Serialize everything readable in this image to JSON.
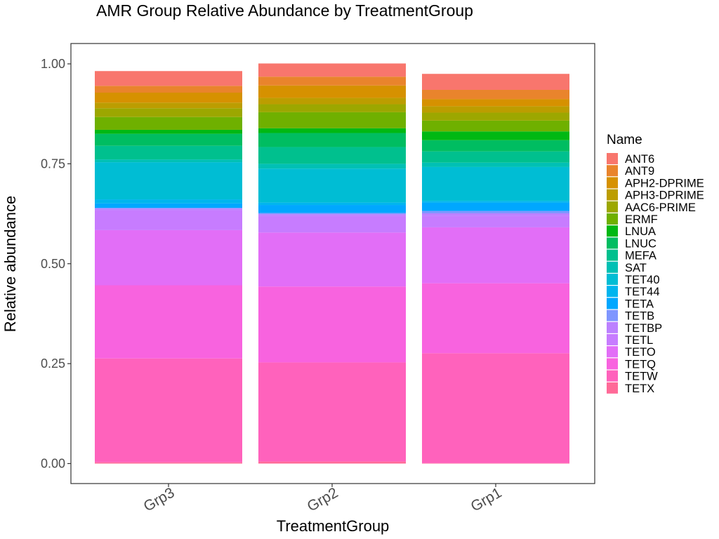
{
  "chart_data": {
    "type": "bar",
    "stacked": true,
    "title": "AMR Group Relative Abundance by TreatmentGroup",
    "xlabel": "TreatmentGroup",
    "ylabel": "Relative abundance",
    "ylim": [
      0,
      1
    ],
    "yticks": [
      "0.00",
      "0.25",
      "0.50",
      "0.75",
      "1.00"
    ],
    "categories": [
      "Grp3",
      "Grp2",
      "Grp1"
    ],
    "legend": {
      "title": "Name",
      "position": "right"
    },
    "series": [
      {
        "name": "ANT6",
        "color": "#F8766D",
        "values": [
          0.037,
          0.033,
          0.04
        ]
      },
      {
        "name": "ANT9",
        "color": "#E9842C",
        "values": [
          0.017,
          0.022,
          0.023
        ]
      },
      {
        "name": "APH2-DPRIME",
        "color": "#D69100",
        "values": [
          0.025,
          0.031,
          0.018
        ]
      },
      {
        "name": "APH3-DPRIME",
        "color": "#BC9D00",
        "values": [
          0.014,
          0.016,
          0.016
        ]
      },
      {
        "name": "AAC6-PRIME",
        "color": "#9CA700",
        "values": [
          0.022,
          0.02,
          0.02
        ]
      },
      {
        "name": "ERMF",
        "color": "#6FB000",
        "values": [
          0.032,
          0.04,
          0.027
        ]
      },
      {
        "name": "LNUA",
        "color": "#00B813",
        "values": [
          0.01,
          0.012,
          0.022
        ]
      },
      {
        "name": "LNUC",
        "color": "#00BD61",
        "values": [
          0.03,
          0.035,
          0.028
        ]
      },
      {
        "name": "MEFA",
        "color": "#00C08E",
        "values": [
          0.034,
          0.042,
          0.028
        ]
      },
      {
        "name": "SAT",
        "color": "#00C0B4",
        "values": [
          0.007,
          0.012,
          0.011
        ]
      },
      {
        "name": "TET40",
        "color": "#00BDD4",
        "values": [
          0.093,
          0.085,
          0.085
        ]
      },
      {
        "name": "TET44",
        "color": "#00B5EE",
        "values": [
          0.01,
          0.006,
          0.004
        ]
      },
      {
        "name": "TETA",
        "color": "#00A7FF",
        "values": [
          0.011,
          0.02,
          0.021
        ]
      },
      {
        "name": "TETB",
        "color": "#7F96FF",
        "values": [
          0.002,
          0.003,
          0.006
        ]
      },
      {
        "name": "TETBP",
        "color": "#BC81FF",
        "values": [
          0.004,
          0.004,
          0.006
        ]
      },
      {
        "name": "TETL",
        "color": "#C77CFF",
        "values": [
          0.05,
          0.042,
          0.029
        ]
      },
      {
        "name": "TETO",
        "color": "#E26EF7",
        "values": [
          0.138,
          0.135,
          0.14
        ]
      },
      {
        "name": "TETQ",
        "color": "#F863DF",
        "values": [
          0.183,
          0.19,
          0.175
        ]
      },
      {
        "name": "TETW",
        "color": "#FF62BC",
        "values": [
          0.26,
          0.248,
          0.275
        ]
      },
      {
        "name": "TETX",
        "color": "#FF6A98",
        "values": [
          0.003,
          0.005,
          0.001
        ]
      }
    ]
  }
}
